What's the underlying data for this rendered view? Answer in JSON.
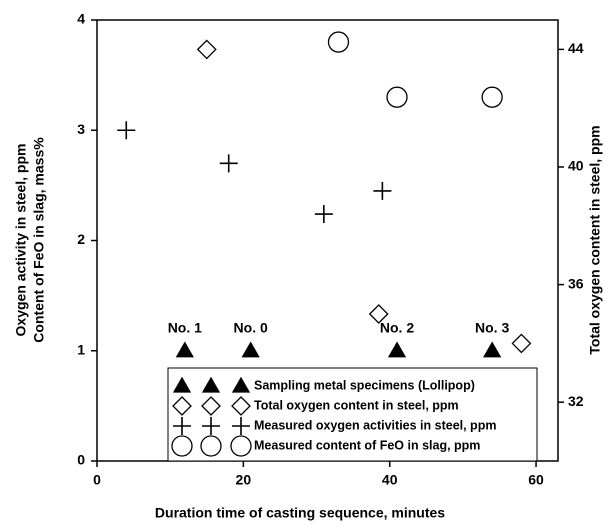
{
  "chart_data": {
    "type": "scatter",
    "xlabel": "Duration time of casting sequence, minutes",
    "ylabel": [
      "Oxygen activity in steel, ppm",
      "Content of FeO in slag, mass%"
    ],
    "y2label": "Total oxygen content in steel, ppm",
    "xlim": [
      0,
      63
    ],
    "xticks": [
      0,
      20,
      40,
      60
    ],
    "ylim": [
      0,
      4
    ],
    "yticks": [
      0,
      1,
      2,
      3,
      4
    ],
    "y2lim": [
      30,
      45
    ],
    "y2ticks": [
      32,
      36,
      40,
      44
    ],
    "grid": false,
    "legend": "lower right",
    "series": [
      {
        "name": "Sampling metal specimens (Lollipop)",
        "marker": "triangle",
        "color": "#000000",
        "x": [
          12,
          21,
          41,
          54
        ],
        "values": [
          1,
          1,
          1,
          1
        ],
        "point_labels": [
          "No. 1",
          "No. 0",
          "No. 2",
          "No. 3"
        ]
      },
      {
        "name": "Total oxygen content in steel, ppm",
        "marker": "diamond",
        "color": "#000000",
        "axis": "y2",
        "x": [
          15,
          38.5,
          58
        ],
        "values": [
          44,
          35,
          34
        ]
      },
      {
        "name": "Measured oxygen activities in steel, ppm",
        "marker": "plus",
        "color": "#000000",
        "x": [
          4,
          18,
          31,
          39
        ],
        "values": [
          3.0,
          2.7,
          2.24,
          2.45
        ]
      },
      {
        "name": "Measured content of FeO in slag, ppm",
        "marker": "circle",
        "color": "#000000",
        "x": [
          33,
          41,
          54
        ],
        "values": [
          3.8,
          3.3,
          3.3
        ]
      }
    ]
  }
}
